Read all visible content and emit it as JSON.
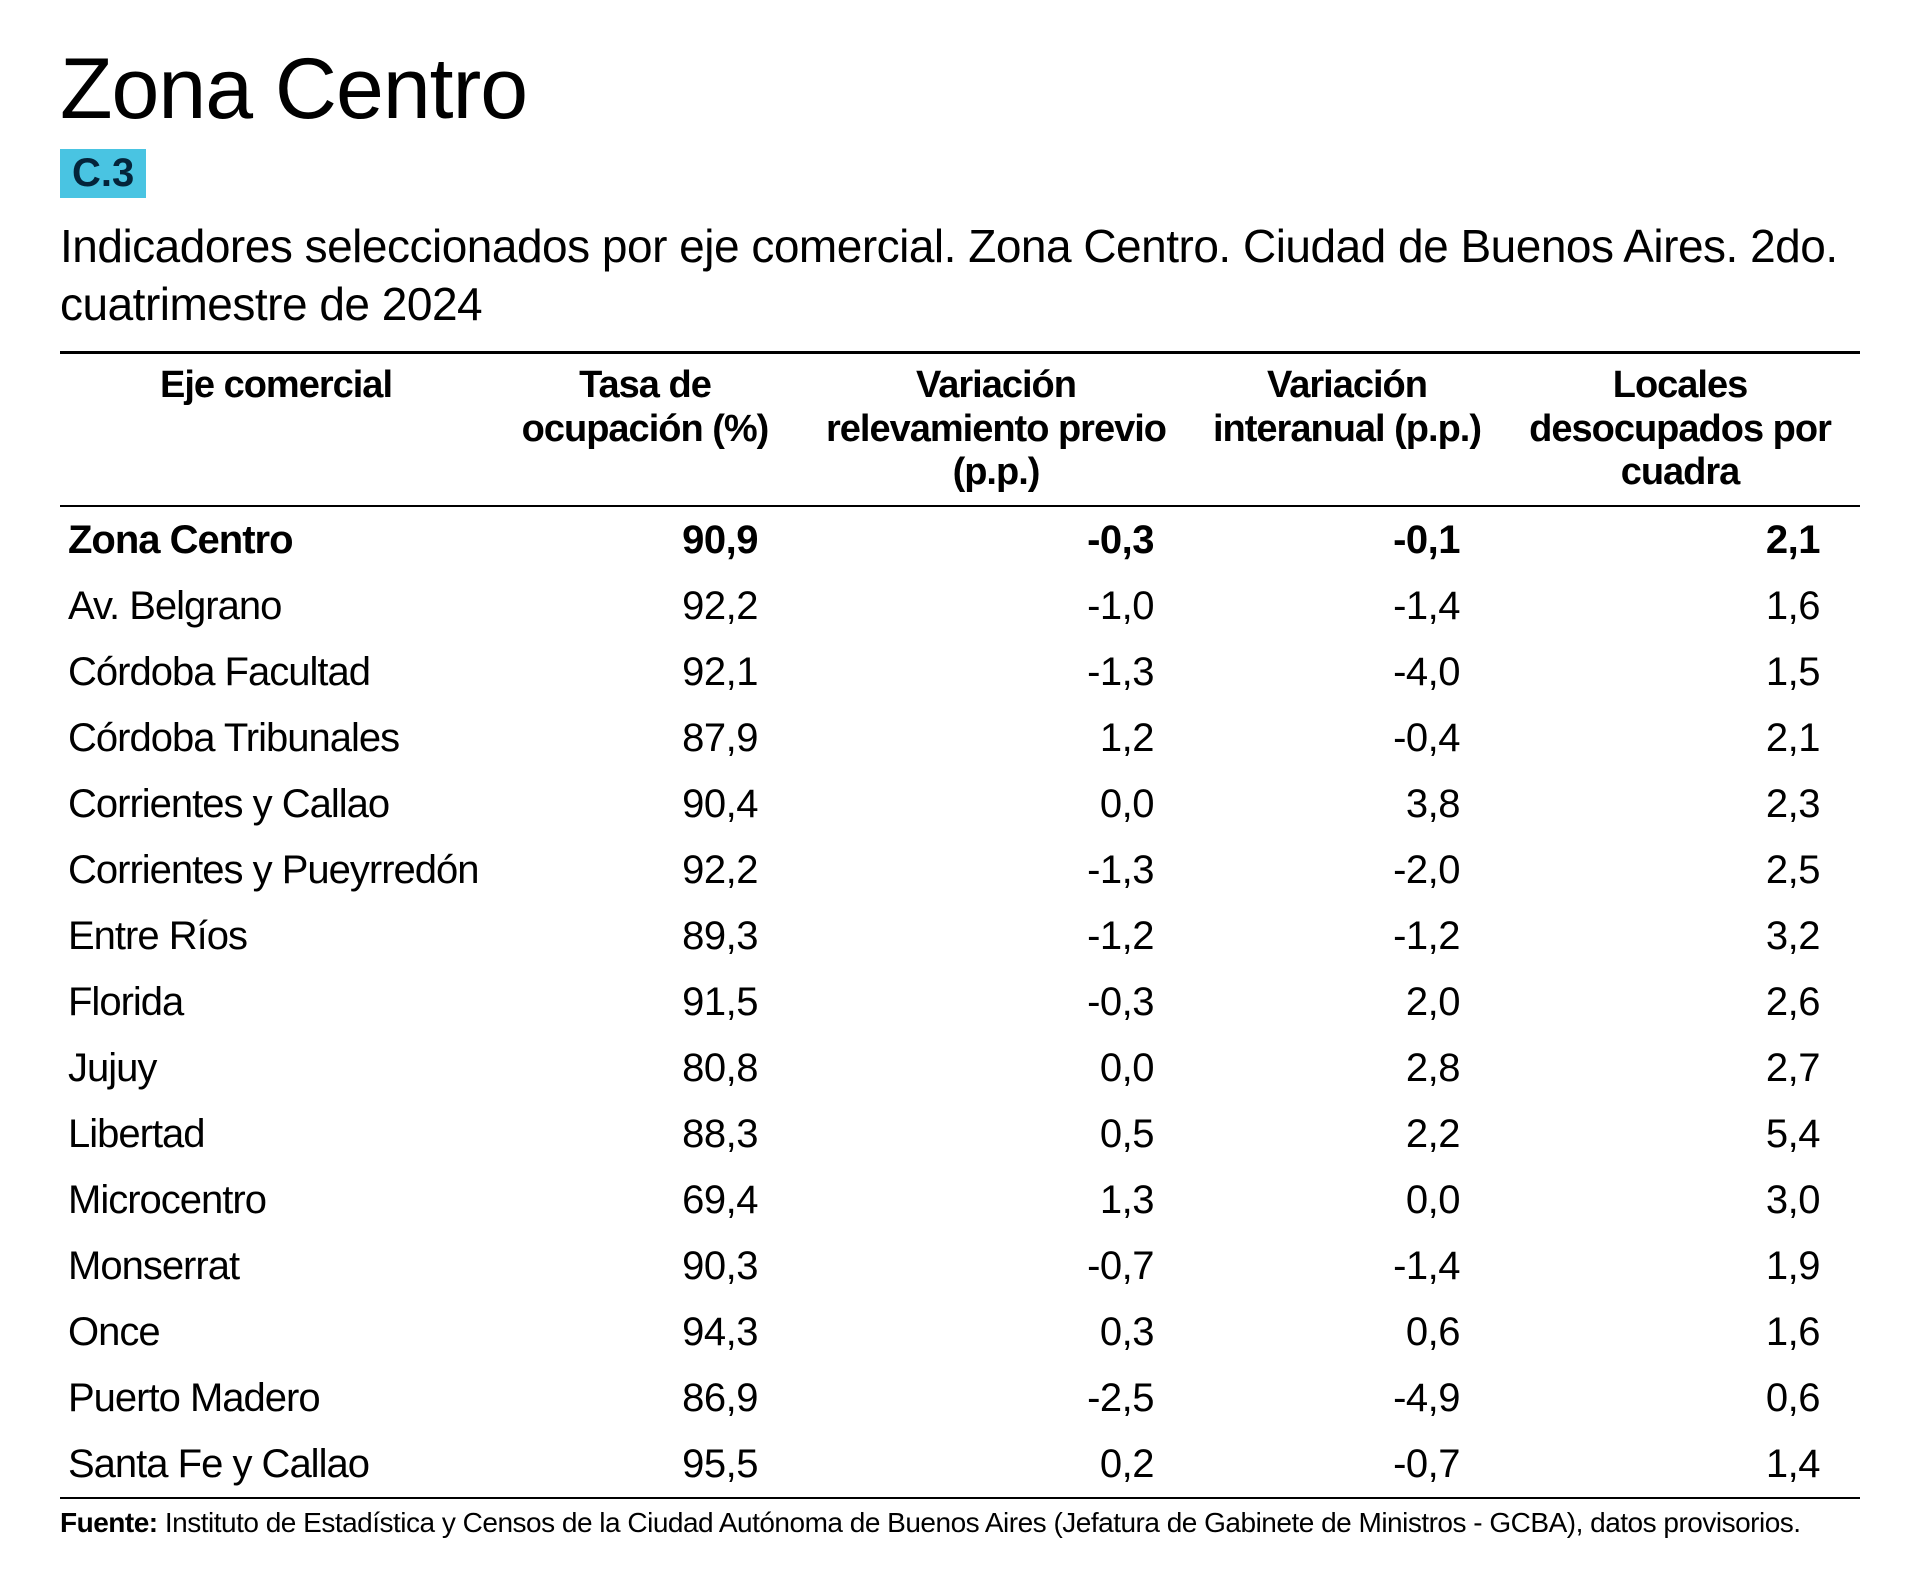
{
  "title": "Zona Centro",
  "badge": {
    "text": "C.3",
    "bg": "#49c4e2",
    "fg": "#04243a"
  },
  "subtitle": "Indicadores seleccionados por eje comercial. Zona Centro. Ciudad de Buenos Aires. 2do. cuatrimestre de 2024",
  "table": {
    "type": "table",
    "border_color": "#000000",
    "columns": [
      {
        "label": "Eje comercial",
        "align": "left"
      },
      {
        "label": "Tasa de ocupación (%)",
        "align": "right"
      },
      {
        "label": "Variación relevamiento previo (p.p.)",
        "align": "right"
      },
      {
        "label": "Variación interanual (p.p.)",
        "align": "right"
      },
      {
        "label": "Locales desocupados por cuadra",
        "align": "right"
      }
    ],
    "rows": [
      {
        "label": "Zona Centro",
        "c1": "90,9",
        "c2": "-0,3",
        "c3": "-0,1",
        "c4": "2,1",
        "bold": true
      },
      {
        "label": "Av. Belgrano",
        "c1": "92,2",
        "c2": "-1,0",
        "c3": "-1,4",
        "c4": "1,6",
        "bold": false
      },
      {
        "label": "Córdoba Facultad",
        "c1": "92,1",
        "c2": "-1,3",
        "c3": "-4,0",
        "c4": "1,5",
        "bold": false
      },
      {
        "label": "Córdoba Tribunales",
        "c1": "87,9",
        "c2": "1,2",
        "c3": "-0,4",
        "c4": "2,1",
        "bold": false
      },
      {
        "label": "Corrientes y Callao",
        "c1": "90,4",
        "c2": "0,0",
        "c3": "3,8",
        "c4": "2,3",
        "bold": false
      },
      {
        "label": "Corrientes y Pueyrredón",
        "c1": "92,2",
        "c2": "-1,3",
        "c3": "-2,0",
        "c4": "2,5",
        "bold": false
      },
      {
        "label": "Entre Ríos",
        "c1": "89,3",
        "c2": "-1,2",
        "c3": "-1,2",
        "c4": "3,2",
        "bold": false
      },
      {
        "label": "Florida",
        "c1": "91,5",
        "c2": "-0,3",
        "c3": "2,0",
        "c4": "2,6",
        "bold": false
      },
      {
        "label": "Jujuy",
        "c1": "80,8",
        "c2": "0,0",
        "c3": "2,8",
        "c4": "2,7",
        "bold": false
      },
      {
        "label": "Libertad",
        "c1": "88,3",
        "c2": "0,5",
        "c3": "2,2",
        "c4": "5,4",
        "bold": false
      },
      {
        "label": "Microcentro",
        "c1": "69,4",
        "c2": "1,3",
        "c3": "0,0",
        "c4": "3,0",
        "bold": false
      },
      {
        "label": "Monserrat",
        "c1": "90,3",
        "c2": "-0,7",
        "c3": "-1,4",
        "c4": "1,9",
        "bold": false
      },
      {
        "label": "Once",
        "c1": "94,3",
        "c2": "0,3",
        "c3": "0,6",
        "c4": "1,6",
        "bold": false
      },
      {
        "label": "Puerto Madero",
        "c1": "86,9",
        "c2": "-2,5",
        "c3": "-4,9",
        "c4": "0,6",
        "bold": false
      },
      {
        "label": "Santa Fe y Callao",
        "c1": "95,5",
        "c2": "0,2",
        "c3": "-0,7",
        "c4": "1,4",
        "bold": false
      }
    ]
  },
  "footnote": {
    "label": "Fuente:",
    "text": "Instituto de Estadística y Censos de la Ciudad Autónoma de Buenos Aires (Jefatura de Gabinete de Ministros - GCBA), datos provisorios."
  }
}
